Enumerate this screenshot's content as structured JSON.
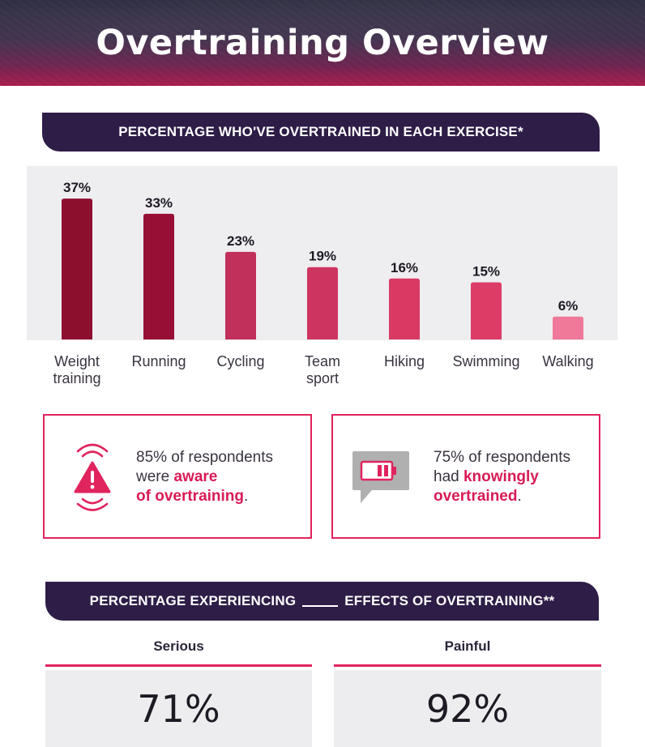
{
  "title": "Overtraining Overview",
  "section1": {
    "heading": "PERCENTAGE WHO'VE OVERTRAINED IN EACH EXERCISE*"
  },
  "chart_data": {
    "type": "bar",
    "title": "PERCENTAGE WHO'VE OVERTRAINED IN EACH EXERCISE*",
    "categories": [
      "Weight training",
      "Running",
      "Cycling",
      "Team sport",
      "Hiking",
      "Swimming",
      "Walking"
    ],
    "category_lines": [
      [
        "Weight",
        "training"
      ],
      [
        "Running"
      ],
      [
        "Cycling"
      ],
      [
        "Team",
        "sport"
      ],
      [
        "Hiking"
      ],
      [
        "Swimming"
      ],
      [
        "Walking"
      ]
    ],
    "values": [
      37,
      33,
      23,
      19,
      16,
      15,
      6
    ],
    "value_labels": [
      "37%",
      "33%",
      "23%",
      "19%",
      "16%",
      "15%",
      "6%"
    ],
    "unit": "%",
    "ylim": [
      0,
      40
    ],
    "xlabel": "",
    "ylabel": "",
    "grid": false,
    "bar_colors": [
      "#8d0f2e",
      "#970f34",
      "#c0305a",
      "#cd3560",
      "#d83a64",
      "#dc3c66",
      "#f07898"
    ]
  },
  "stats": [
    {
      "icon": "alert-icon",
      "pre": "85% of respondents",
      "mid": "were ",
      "highlight1": "aware",
      "highlight2": "of overtraining",
      "post": "."
    },
    {
      "icon": "low-battery-icon",
      "pre": "75% of respondents",
      "mid": "had ",
      "highlight1": "knowingly",
      "highlight2": "overtrained",
      "post": "."
    }
  ],
  "section2": {
    "heading_before": "PERCENTAGE EXPERIENCING",
    "heading_after": "EFFECTS OF OVERTRAINING**"
  },
  "effects": [
    {
      "label": "Serious",
      "value": "71%"
    },
    {
      "label": "Painful",
      "value": "92%"
    }
  ],
  "colors": {
    "accent": "#e0245e",
    "navy": "#2e1d47"
  }
}
